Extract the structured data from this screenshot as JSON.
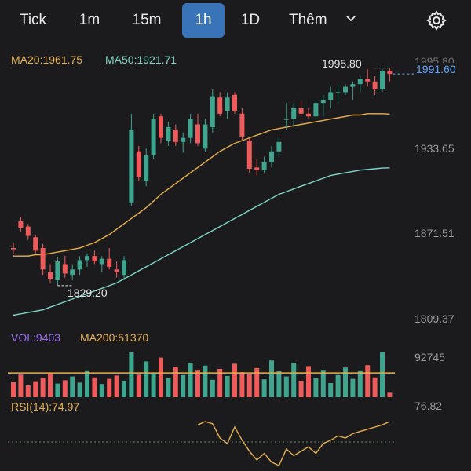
{
  "tabs": [
    {
      "label": "Tick",
      "active": false
    },
    {
      "label": "1m",
      "active": false
    },
    {
      "label": "15m",
      "active": false
    },
    {
      "label": "1h",
      "active": true
    },
    {
      "label": "1D",
      "active": false
    }
  ],
  "more_label": "Thêm",
  "icons": {
    "more": "chevron-down-icon",
    "settings": "gear-icon"
  },
  "colors": {
    "up": "#3fa58f",
    "down": "#ef5b5b",
    "ma20": "#e8b04b",
    "ma50": "#7ed6c8",
    "vol": "#9b6cf2",
    "active_tab": "#3a74b8",
    "price": "#5aa6ff",
    "background": "#1b1b1d"
  },
  "indicators": {
    "ma20": "MA20:1961.75",
    "ma50": "MA50:1921.71",
    "vol": "VOL:9403",
    "vol_ma": "MA200:51370",
    "rsi": "RSI(14):74.97"
  },
  "markers": {
    "high": "1995.80",
    "low": "1829.20",
    "current": "1991.60"
  },
  "axis_labels": {
    "top_partial": "1995.80",
    "p1": "1933.65",
    "p2": "1871.51",
    "p3": "1809.37",
    "vol": "92745",
    "rsi": "76.82"
  },
  "chart_data": {
    "type": "candlestick",
    "ylim": [
      1809.37,
      1995.8
    ],
    "ohlc": [
      [
        1862,
        1866,
        1858,
        1861
      ],
      [
        1882,
        1885,
        1874,
        1877
      ],
      [
        1878,
        1880,
        1868,
        1871
      ],
      [
        1870,
        1872,
        1858,
        1860
      ],
      [
        1862,
        1865,
        1842,
        1846
      ],
      [
        1844,
        1850,
        1836,
        1839
      ],
      [
        1838,
        1855,
        1834,
        1852
      ],
      [
        1850,
        1856,
        1840,
        1843
      ],
      [
        1842,
        1850,
        1838,
        1846
      ],
      [
        1846,
        1856,
        1842,
        1853
      ],
      [
        1853,
        1858,
        1848,
        1856
      ],
      [
        1856,
        1860,
        1850,
        1852
      ],
      [
        1850,
        1856,
        1844,
        1854
      ],
      [
        1854,
        1862,
        1846,
        1848
      ],
      [
        1846,
        1852,
        1840,
        1844
      ],
      [
        1842,
        1856,
        1838,
        1853
      ],
      [
        1896,
        1962,
        1893,
        1950
      ],
      [
        1934,
        1938,
        1912,
        1915
      ],
      [
        1912,
        1936,
        1908,
        1931
      ],
      [
        1931,
        1962,
        1928,
        1958
      ],
      [
        1960,
        1962,
        1940,
        1944
      ],
      [
        1942,
        1956,
        1938,
        1952
      ],
      [
        1950,
        1954,
        1938,
        1941
      ],
      [
        1941,
        1948,
        1933,
        1944
      ],
      [
        1944,
        1962,
        1940,
        1958
      ],
      [
        1954,
        1962,
        1938,
        1940
      ],
      [
        1936,
        1958,
        1934,
        1954
      ],
      [
        1952,
        1980,
        1948,
        1975
      ],
      [
        1974,
        1978,
        1960,
        1962
      ],
      [
        1964,
        1978,
        1958,
        1974
      ],
      [
        1976,
        1978,
        1962,
        1964
      ],
      [
        1962,
        1966,
        1942,
        1945
      ],
      [
        1942,
        1944,
        1918,
        1921
      ],
      [
        1922,
        1928,
        1916,
        1920
      ],
      [
        1920,
        1930,
        1918,
        1926
      ],
      [
        1926,
        1938,
        1922,
        1934
      ],
      [
        1934,
        1945,
        1930,
        1941
      ],
      [
        1958,
        1970,
        1950,
        1958
      ],
      [
        1958,
        1970,
        1952,
        1966
      ],
      [
        1966,
        1972,
        1960,
        1962
      ],
      [
        1962,
        1966,
        1958,
        1960
      ],
      [
        1960,
        1972,
        1958,
        1970
      ],
      [
        1970,
        1976,
        1960,
        1972
      ],
      [
        1972,
        1982,
        1966,
        1978
      ],
      [
        1978,
        1983,
        1970,
        1978
      ],
      [
        1978,
        1984,
        1976,
        1982
      ],
      [
        1982,
        1986,
        1972,
        1984
      ],
      [
        1984,
        1990,
        1978,
        1988
      ],
      [
        1988,
        1995,
        1982,
        1986
      ],
      [
        1986,
        1990,
        1976,
        1980
      ],
      [
        1980,
        1995,
        1978,
        1994
      ],
      [
        1994,
        1996,
        1986,
        1991.6
      ]
    ],
    "ma20": [
      1856,
      1856,
      1856,
      1857,
      1857,
      1858,
      1859,
      1860,
      1861,
      1862,
      1864,
      1866,
      1869,
      1872,
      1876,
      1880,
      1884,
      1888,
      1892,
      1897,
      1902,
      1906,
      1910,
      1914,
      1918,
      1922,
      1926,
      1930,
      1934,
      1937,
      1940,
      1942,
      1944,
      1946,
      1948,
      1950,
      1951,
      1952,
      1953,
      1954,
      1955,
      1956,
      1957,
      1958,
      1959,
      1960,
      1961,
      1961,
      1962,
      1962,
      1962,
      1961.75
    ],
    "ma50": [
      1812,
      1813,
      1814,
      1815,
      1816,
      1818,
      1820,
      1822,
      1824,
      1826,
      1828,
      1830,
      1832,
      1834,
      1836,
      1839,
      1842,
      1845,
      1848,
      1851,
      1854,
      1857,
      1860,
      1863,
      1866,
      1869,
      1872,
      1875,
      1878,
      1881,
      1884,
      1887,
      1890,
      1893,
      1896,
      1899,
      1902,
      1904,
      1906,
      1908,
      1910,
      1912,
      1914,
      1916,
      1917,
      1918,
      1919,
      1920,
      1920.5,
      1921,
      1921.5,
      1921.71
    ],
    "volume": [
      32000,
      48000,
      25000,
      34000,
      41000,
      52000,
      29000,
      36000,
      44000,
      31000,
      57000,
      42000,
      28000,
      39000,
      46000,
      35000,
      95000,
      48000,
      76000,
      52000,
      84000,
      40000,
      64000,
      47000,
      72000,
      58000,
      67000,
      37000,
      60000,
      45000,
      71000,
      53000,
      49000,
      62000,
      38000,
      78000,
      55000,
      44000,
      73000,
      35000,
      66000,
      41000,
      58000,
      30000,
      47000,
      63000,
      39000,
      57000,
      68000,
      42000,
      96000,
      9403
    ],
    "volume_ma": 51370,
    "rsi": [
      null,
      null,
      null,
      null,
      null,
      null,
      null,
      null,
      null,
      null,
      null,
      null,
      null,
      null,
      null,
      null,
      null,
      null,
      null,
      null,
      null,
      null,
      null,
      null,
      null,
      72,
      75,
      73,
      60,
      55,
      70,
      58,
      48,
      40,
      46,
      38,
      35,
      50,
      44,
      48,
      52,
      46,
      55,
      58,
      62,
      60,
      64,
      66,
      68,
      70,
      72,
      74.97
    ],
    "rsi_range": [
      0,
      100
    ]
  }
}
